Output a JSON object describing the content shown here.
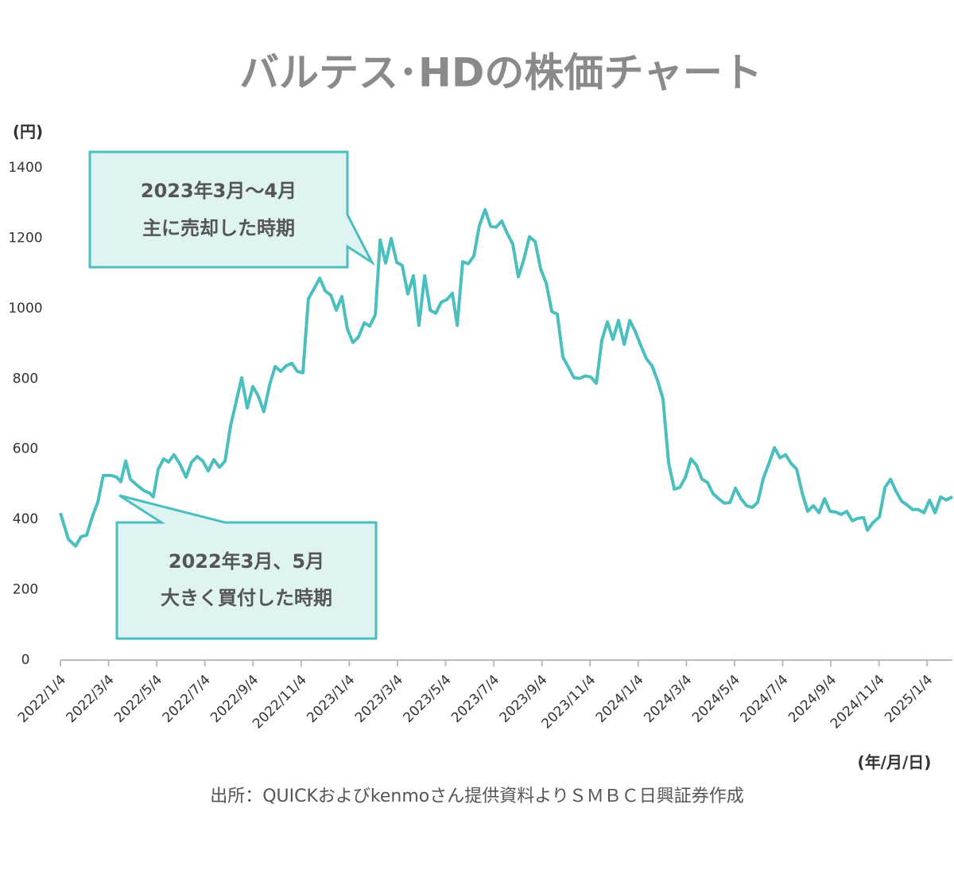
{
  "chart_data": {
    "type": "line",
    "title": "バルテス･HDの株価チャート",
    "y_label": "(円)",
    "x_label": "(年/月/日)",
    "source": "出所：QUICKおよびkenmoさん提供資料よりＳＭＢＣ日興証券作成",
    "color": "#4bbfbf",
    "x": [
      0,
      0.33,
      0.63,
      0.86,
      1.09,
      1.32,
      1.55,
      1.78,
      2.11,
      2.34,
      2.51,
      2.71,
      2.91,
      3.17,
      3.47,
      3.7,
      3.86,
      4.06,
      4.29,
      4.49,
      4.72,
      4.95,
      5.22,
      5.45,
      5.68,
      5.91,
      6.14,
      6.37,
      6.61,
      6.84,
      7.07,
      7.3,
      7.53,
      7.76,
      7.99,
      8.22,
      8.45,
      8.69,
      8.92,
      9.15,
      9.38,
      9.61,
      9.84,
      10.07,
      10.3,
      10.54,
      10.77,
      11.0,
      11.23,
      11.46,
      11.69,
      11.92,
      12.15,
      12.38,
      12.62,
      12.85,
      13.08,
      13.28,
      13.51,
      13.74,
      13.97,
      14.2,
      14.43,
      14.66,
      14.89,
      15.13,
      15.36,
      15.59,
      15.82,
      16.05,
      16.28,
      16.48,
      16.71,
      16.94,
      17.17,
      17.4,
      17.64,
      17.87,
      18.1,
      18.33,
      18.56,
      18.79,
      19.02,
      19.25,
      19.48,
      19.72,
      19.95,
      20.18,
      20.41,
      20.64,
      20.87,
      21.1,
      21.33,
      21.57,
      21.8,
      22.03,
      22.26,
      22.49,
      22.72,
      22.95,
      23.18,
      23.42,
      23.65,
      23.88,
      24.11,
      24.34,
      24.57,
      24.8,
      25.03,
      25.26,
      25.5,
      25.73,
      25.96,
      26.19,
      26.42,
      26.65,
      26.88,
      27.11,
      27.34,
      27.58,
      27.81,
      28.04,
      28.27,
      28.5,
      28.73,
      28.96,
      29.19,
      29.43,
      29.66,
      29.89,
      30.12,
      30.35,
      30.58,
      30.81,
      31.04,
      31.27,
      31.51,
      31.74,
      31.97,
      32.2,
      32.43,
      32.66,
      32.89,
      33.12,
      33.36,
      33.52,
      33.75,
      34.02,
      34.25,
      34.48,
      34.71,
      34.94,
      35.17,
      35.4,
      35.63,
      35.87,
      36.1,
      36.33,
      36.56,
      36.79,
      37.05
    ],
    "values": [
      418,
      344,
      324,
      351,
      355,
      407,
      448,
      525,
      525,
      520,
      507,
      566,
      514,
      498,
      482,
      475,
      464,
      543,
      572,
      563,
      584,
      559,
      520,
      563,
      579,
      566,
      538,
      570,
      548,
      566,
      667,
      735,
      803,
      717,
      778,
      751,
      706,
      783,
      835,
      821,
      837,
      844,
      821,
      817,
      1027,
      1057,
      1086,
      1050,
      1038,
      995,
      1034,
      941,
      903,
      919,
      959,
      950,
      982,
      1195,
      1129,
      1199,
      1131,
      1122,
      1041,
      1093,
      952,
      1093,
      995,
      986,
      1018,
      1025,
      1043,
      952,
      1133,
      1127,
      1149,
      1235,
      1281,
      1233,
      1231,
      1249,
      1213,
      1183,
      1090,
      1140,
      1204,
      1190,
      1111,
      1072,
      991,
      984,
      862,
      833,
      803,
      801,
      808,
      805,
      787,
      910,
      962,
      912,
      966,
      898,
      966,
      934,
      894,
      857,
      837,
      796,
      742,
      561,
      486,
      491,
      520,
      572,
      554,
      514,
      505,
      473,
      459,
      446,
      448,
      489,
      459,
      439,
      434,
      448,
      516,
      559,
      604,
      575,
      584,
      559,
      543,
      475,
      423,
      439,
      419,
      459,
      423,
      421,
      414,
      423,
      396,
      403,
      405,
      369,
      391,
      407,
      491,
      514,
      480,
      452,
      441,
      428,
      428,
      419,
      455,
      419,
      464,
      455,
      464
    ],
    "xlim": [
      0,
      37.05
    ],
    "xticks": [
      {
        "value": 0,
        "label": "2022/1/4"
      },
      {
        "value": 2,
        "label": "2022/3/4"
      },
      {
        "value": 4,
        "label": "2022/5/4"
      },
      {
        "value": 6,
        "label": "2022/7/4"
      },
      {
        "value": 8,
        "label": "2022/9/4"
      },
      {
        "value": 10,
        "label": "2022/11/4"
      },
      {
        "value": 12,
        "label": "2023/1/4"
      },
      {
        "value": 14,
        "label": "2023/3/4"
      },
      {
        "value": 16,
        "label": "2023/5/4"
      },
      {
        "value": 18,
        "label": "2023/7/4"
      },
      {
        "value": 20,
        "label": "2023/9/4"
      },
      {
        "value": 22,
        "label": "2023/11/4"
      },
      {
        "value": 24,
        "label": "2024/1/4"
      },
      {
        "value": 26,
        "label": "2024/3/4"
      },
      {
        "value": 28,
        "label": "2024/5/4"
      },
      {
        "value": 30,
        "label": "2024/7/4"
      },
      {
        "value": 32,
        "label": "2024/9/4"
      },
      {
        "value": 34,
        "label": "2024/11/4"
      },
      {
        "value": 36,
        "label": "2025/1/4"
      }
    ],
    "ylim": [
      0,
      1400
    ],
    "yticks": [
      0,
      200,
      400,
      600,
      800,
      1000,
      1200,
      1400
    ],
    "annotations": [
      {
        "lines": [
          "2023年3月～4月",
          "主に売却した時期"
        ]
      },
      {
        "lines": [
          "2022年3月、5月",
          "大きく買付した時期"
        ]
      }
    ]
  }
}
